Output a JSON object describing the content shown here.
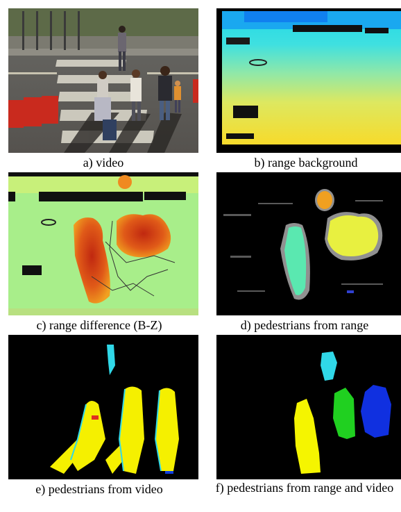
{
  "figure": {
    "panels": [
      {
        "id": "a",
        "caption": "a) video",
        "content": "street scene with pedestrians crossing a crosswalk"
      },
      {
        "id": "b",
        "caption": "b) range background",
        "content": "depth map of empty scene"
      },
      {
        "id": "c",
        "caption": "c) range difference (B-Z)",
        "content": "depth difference map"
      },
      {
        "id": "d",
        "caption": "d) pedestrians from range",
        "content": "segmented blobs from range"
      },
      {
        "id": "e",
        "caption": "e) pedestrians from video",
        "content": "foreground mask from video"
      },
      {
        "id": "f",
        "caption": "f) pedestrians from range and video",
        "content": "labelled pedestrian blobs"
      }
    ]
  },
  "colors": {
    "background": "#ffffff",
    "panel_black": "#000000",
    "range_cyan": "#33ccee",
    "range_yellow": "#f2e64a",
    "diff_green": "#a8ee8a",
    "diff_red": "#c02810",
    "blob_teal": "#5ae8b0",
    "blob_yellow": "#e8f040",
    "blob_orange": "#f0a020",
    "label_yellow": "#f5f500",
    "label_green": "#20d020",
    "label_blue": "#1030e0",
    "label_cyan": "#30d8e8"
  }
}
